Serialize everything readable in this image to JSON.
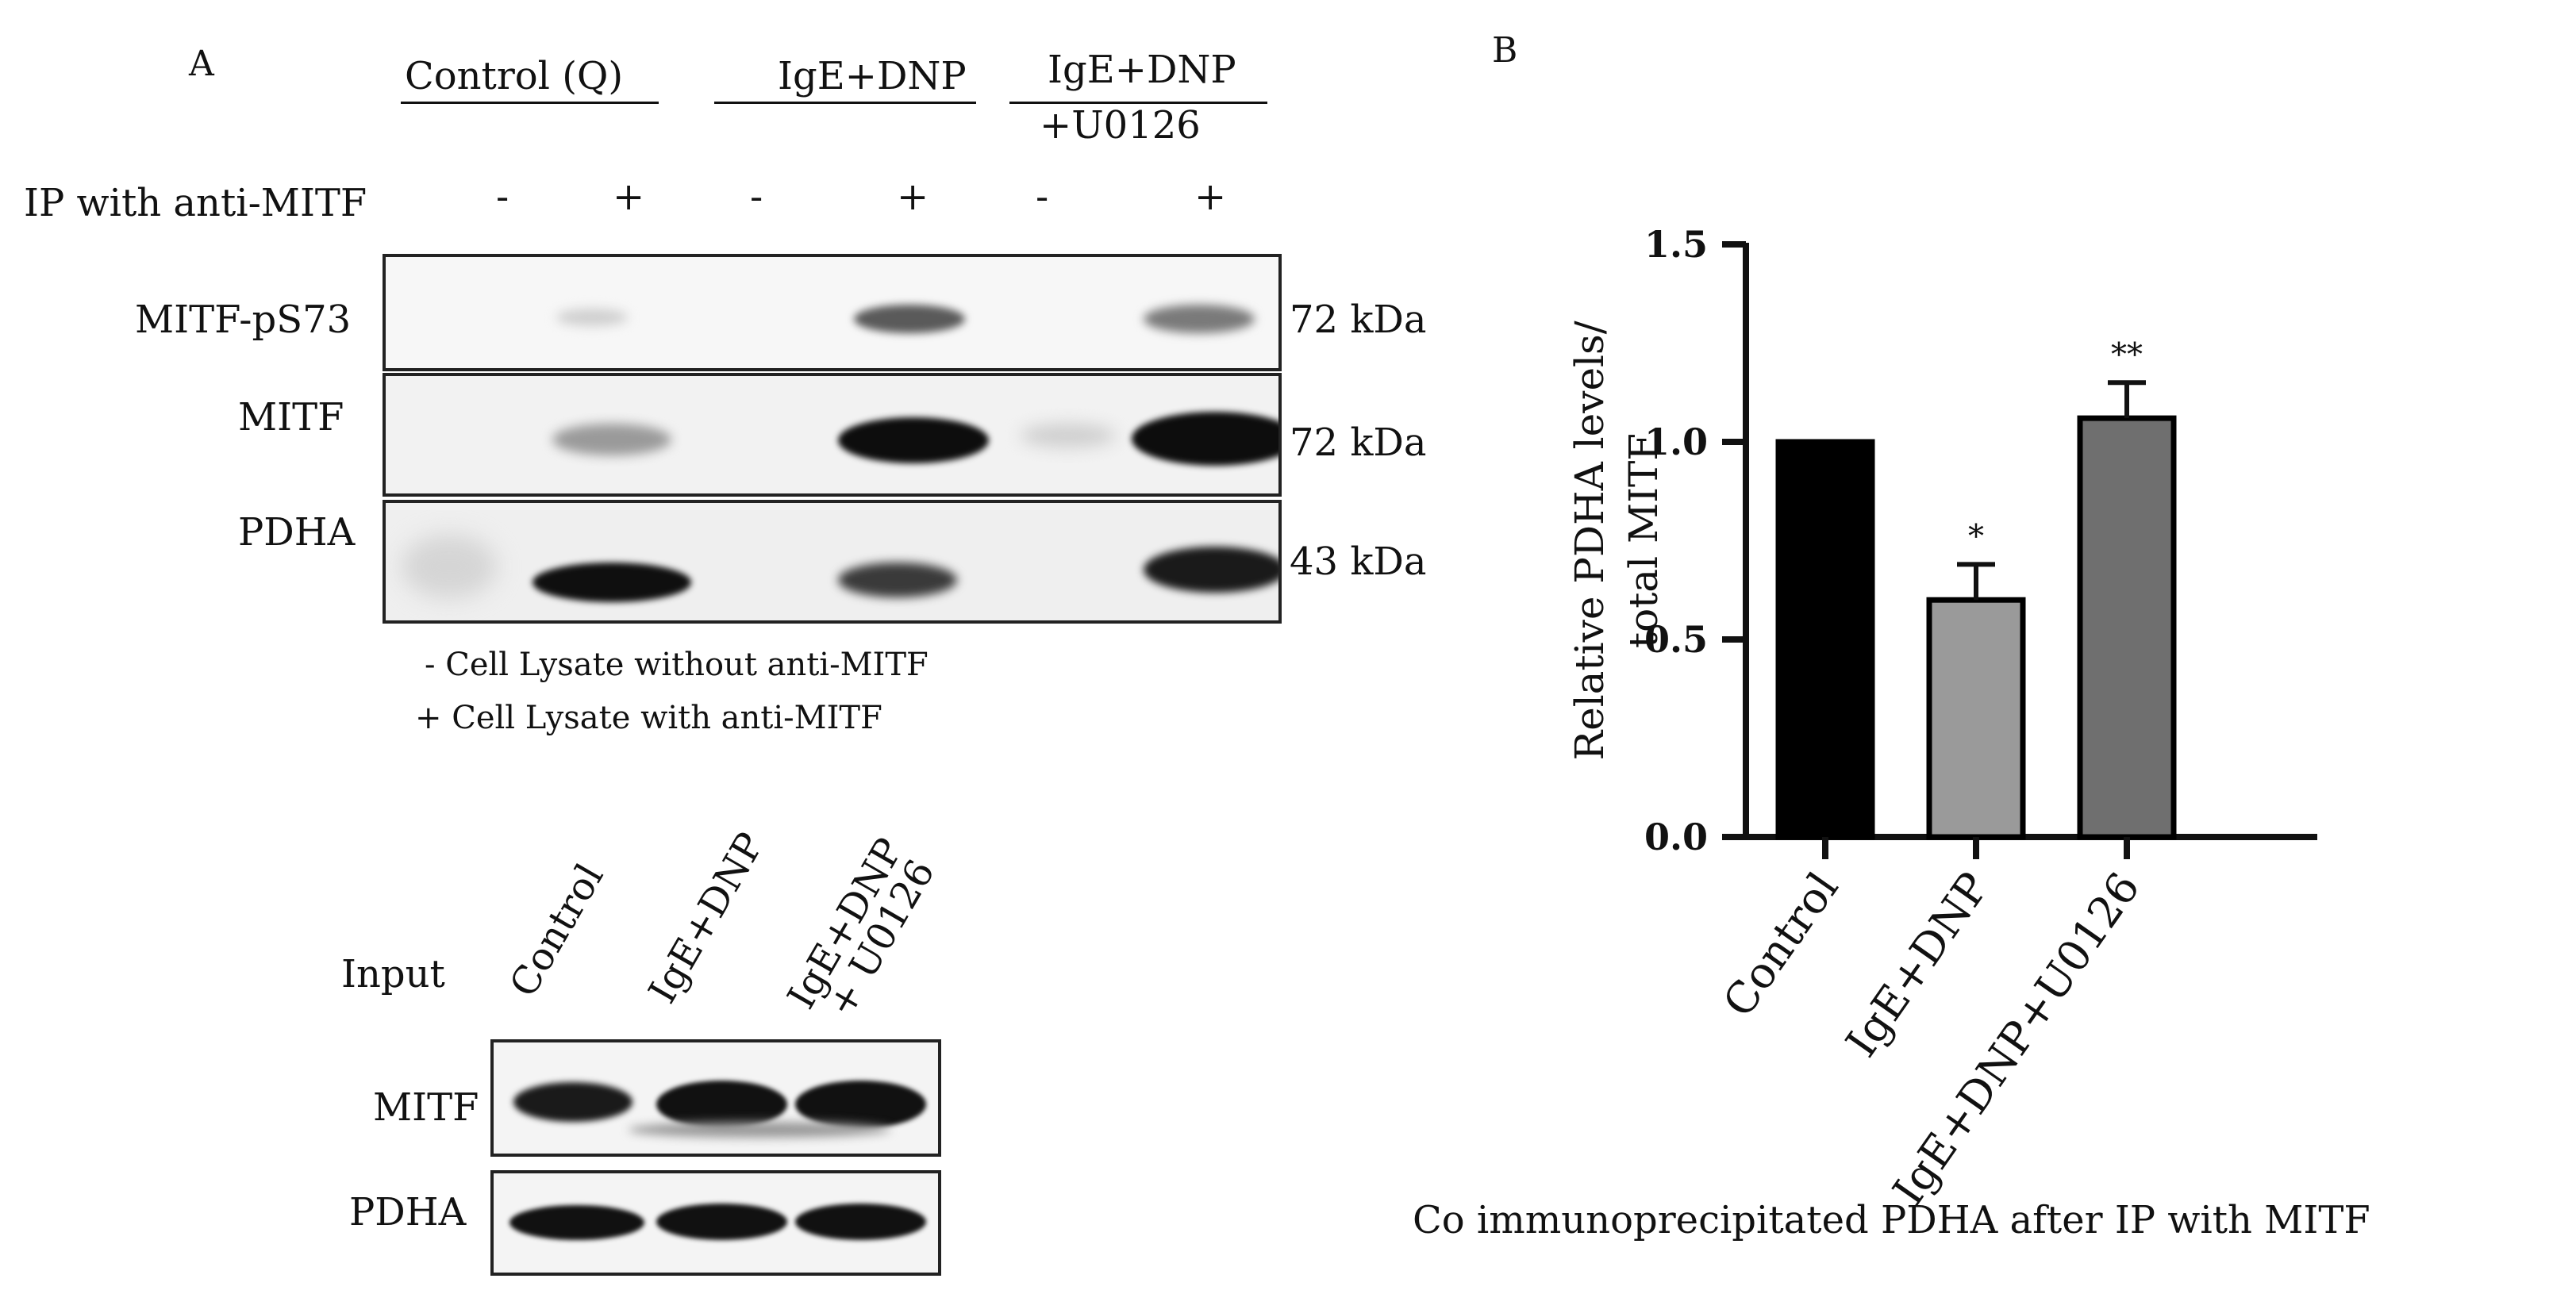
{
  "panel_a": {
    "label": "A",
    "group_headers": [
      "Control (Q)",
      "IgE+DNP",
      "IgE+DNP",
      "+U0126"
    ],
    "ip_label": "IP with anti-MITF",
    "lane_signs": [
      "-",
      "+",
      "-",
      "+",
      "-",
      "+"
    ],
    "blots": [
      {
        "name": "MITF-pS73",
        "size": "72 kDa"
      },
      {
        "name": "MITF",
        "size": "72 kDa"
      },
      {
        "name": "PDHA",
        "size": "43 kDa"
      }
    ],
    "legend": [
      "-  Cell Lysate without anti-MITF",
      "+ Cell Lysate with anti-MITF"
    ],
    "input": {
      "label": "Input",
      "lanes": [
        "Control",
        "IgE+DNP",
        "IgE+DNP",
        "+ U0126"
      ],
      "blots": [
        "MITF",
        "PDHA"
      ]
    }
  },
  "panel_b": {
    "label": "B",
    "caption": "Co immunoprecipitated PDHA after IP with MITF"
  },
  "chart_data": {
    "type": "bar",
    "categories": [
      "Control",
      "IgE+DNP",
      "IgE+DNP+U0126"
    ],
    "values": [
      1.0,
      0.6,
      1.06
    ],
    "errors": [
      0,
      0.09,
      0.09
    ],
    "significance": [
      "",
      "*",
      "**"
    ],
    "colors": [
      "#000000",
      "#9a9a9a",
      "#6f6f6f"
    ],
    "ylabel_lines": [
      "Relative PDHA levels/",
      "total MITF"
    ],
    "ylim": [
      0,
      1.5
    ],
    "yticks": [
      0.0,
      0.5,
      1.0,
      1.5
    ],
    "ytick_labels": [
      "0.0",
      "0.5",
      "1.0",
      "1.5"
    ],
    "grid": false
  }
}
